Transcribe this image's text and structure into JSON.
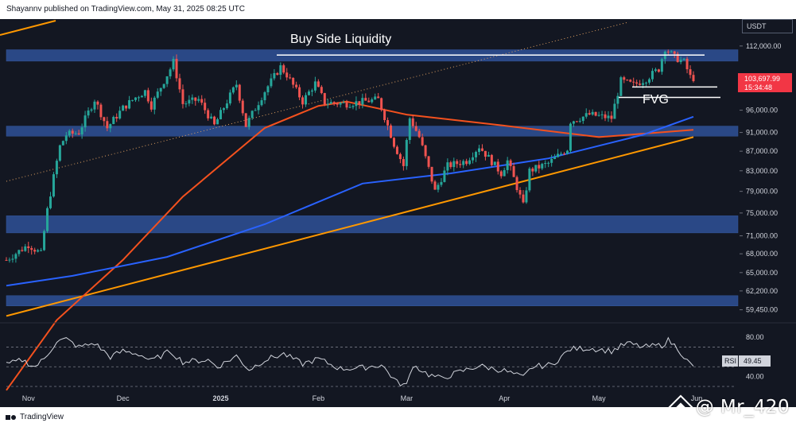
{
  "header": {
    "attribution": "Shayannv published on TradingView.com, May 31, 2025 08:25 UTC"
  },
  "footer": {
    "brand": "TradingView"
  },
  "watermark": {
    "handle": "@ Mr_420"
  },
  "currency": "USDT",
  "price_badge": {
    "price": "103,697.99",
    "countdown": "15:34:48"
  },
  "rsi_badge": {
    "label": "RSI",
    "value": "49.45"
  },
  "annotations": {
    "buy_side": "Buy Side Liquidity",
    "fvg": "FVG"
  },
  "colors": {
    "background": "#131722",
    "up": "#26a69a",
    "down": "#ef5350",
    "zone": "#2d4e91",
    "ma_red": "#f4511e",
    "ma_blue": "#2962ff",
    "trendline": "#ff9800",
    "rsi": "#d1d4dc",
    "price_badge": "#f23645"
  },
  "chart_data": [
    {
      "type": "candlestick",
      "title": "",
      "y_scale": "log",
      "price_ticks": [
        "112,000.00",
        "96,000.00",
        "91,000.00",
        "87,000.00",
        "83,000.00",
        "79,000.00",
        "75,000.00",
        "71,000.00",
        "68,000.00",
        "65,000.00",
        "62,200.00",
        "59,450.00"
      ],
      "price_tick_values": [
        112000,
        96000,
        91000,
        87000,
        83000,
        79000,
        75000,
        71000,
        68000,
        65000,
        62200,
        59450
      ],
      "time_ticks": [
        "Nov",
        "Dec",
        "2025",
        "Feb",
        "Mar",
        "Apr",
        "May",
        "Jun"
      ],
      "time_tick_dates": [
        "2024-11-01",
        "2024-12-01",
        "2025-01-01",
        "2025-02-01",
        "2025-03-01",
        "2025-04-01",
        "2025-05-01",
        "2025-06-01"
      ],
      "date_range": [
        "2024-10-25",
        "2025-05-31"
      ],
      "approx_daily_close": [
        [
          "2024-10-25",
          67000
        ],
        [
          "2024-11-01",
          69500
        ],
        [
          "2024-11-05",
          68000
        ],
        [
          "2024-11-07",
          75500
        ],
        [
          "2024-11-11",
          88000
        ],
        [
          "2024-11-13",
          90500
        ],
        [
          "2024-11-17",
          91000
        ],
        [
          "2024-11-22",
          98500
        ],
        [
          "2024-11-26",
          92000
        ],
        [
          "2024-12-01",
          96500
        ],
        [
          "2024-12-05",
          99000
        ],
        [
          "2024-12-08",
          100500
        ],
        [
          "2024-12-10",
          97000
        ],
        [
          "2024-12-16",
          106000
        ],
        [
          "2024-12-17",
          107800
        ],
        [
          "2024-12-20",
          97500
        ],
        [
          "2024-12-25",
          98500
        ],
        [
          "2024-12-30",
          92500
        ],
        [
          "2025-01-06",
          102200
        ],
        [
          "2025-01-09",
          92500
        ],
        [
          "2025-01-15",
          100500
        ],
        [
          "2025-01-20",
          106500
        ],
        [
          "2025-01-22",
          104500
        ],
        [
          "2025-01-27",
          98000
        ],
        [
          "2025-01-31",
          102400
        ],
        [
          "2025-02-03",
          97800
        ],
        [
          "2025-02-10",
          97500
        ],
        [
          "2025-02-20",
          98500
        ],
        [
          "2025-02-25",
          88500
        ],
        [
          "2025-02-28",
          84000
        ],
        [
          "2025-03-02",
          94200
        ],
        [
          "2025-03-05",
          90000
        ],
        [
          "2025-03-10",
          79000
        ],
        [
          "2025-03-14",
          84000
        ],
        [
          "2025-03-20",
          85000
        ],
        [
          "2025-03-24",
          88000
        ],
        [
          "2025-03-31",
          82500
        ],
        [
          "2025-04-02",
          85000
        ],
        [
          "2025-04-07",
          76300
        ],
        [
          "2025-04-09",
          83000
        ],
        [
          "2025-04-15",
          84500
        ],
        [
          "2025-04-21",
          87500
        ],
        [
          "2025-04-22",
          93500
        ],
        [
          "2025-04-28",
          95000
        ],
        [
          "2025-05-05",
          94200
        ],
        [
          "2025-05-08",
          103000
        ],
        [
          "2025-05-12",
          102000
        ],
        [
          "2025-05-16",
          103500
        ],
        [
          "2025-05-20",
          106000
        ],
        [
          "2025-05-22",
          111500
        ],
        [
          "2025-05-25",
          109000
        ],
        [
          "2025-05-28",
          107800
        ],
        [
          "2025-05-30",
          104000
        ],
        [
          "2025-05-31",
          103698
        ]
      ],
      "zones": [
        [
          108000,
          111000
        ],
        [
          90200,
          92400
        ],
        [
          71500,
          74500
        ],
        [
          60000,
          61500
        ]
      ],
      "buy_side_liquidity_level": 109600,
      "fvg_levels": [
        101500,
        99000
      ],
      "moving_average_200": [
        [
          "2024-10-25",
          49000
        ],
        [
          "2024-11-10",
          58000
        ],
        [
          "2024-12-01",
          67000
        ],
        [
          "2024-12-20",
          78000
        ],
        [
          "2025-01-15",
          92000
        ],
        [
          "2025-02-01",
          97000
        ],
        [
          "2025-02-10",
          98000
        ],
        [
          "2025-03-01",
          95000
        ],
        [
          "2025-04-01",
          92500
        ],
        [
          "2025-05-01",
          90000
        ],
        [
          "2025-05-31",
          91600
        ]
      ],
      "moving_average_blue": [
        [
          "2024-10-25",
          63000
        ],
        [
          "2024-11-15",
          64500
        ],
        [
          "2024-12-15",
          67500
        ],
        [
          "2025-01-15",
          73000
        ],
        [
          "2025-02-15",
          80500
        ],
        [
          "2025-03-15",
          82500
        ],
        [
          "2025-04-15",
          85500
        ],
        [
          "2025-05-15",
          90500
        ],
        [
          "2025-05-31",
          94500
        ]
      ],
      "trendline_points": [
        [
          "2024-10-25",
          59700
        ],
        [
          "2025-05-31",
          90000
        ]
      ]
    },
    {
      "type": "line",
      "title": "",
      "name": "RSI",
      "ylim": [
        30,
        85
      ],
      "ticks": [
        "80.00",
        "40.00"
      ],
      "tick_values": [
        80,
        40
      ],
      "levels": [
        70,
        50,
        30
      ],
      "last_value": 49.45,
      "approx_series": [
        [
          "2024-10-25",
          52
        ],
        [
          "2024-10-30",
          57
        ],
        [
          "2024-11-03",
          50
        ],
        [
          "2024-11-06",
          58
        ],
        [
          "2024-11-10",
          76
        ],
        [
          "2024-11-13",
          78
        ],
        [
          "2024-11-17",
          70
        ],
        [
          "2024-11-22",
          74
        ],
        [
          "2024-11-27",
          60
        ],
        [
          "2024-12-01",
          66
        ],
        [
          "2024-12-06",
          63
        ],
        [
          "2024-12-10",
          56
        ],
        [
          "2024-12-16",
          66
        ],
        [
          "2024-12-20",
          55
        ],
        [
          "2024-12-28",
          57
        ],
        [
          "2024-12-31",
          50
        ],
        [
          "2025-01-06",
          61
        ],
        [
          "2025-01-10",
          47
        ],
        [
          "2025-01-15",
          57
        ],
        [
          "2025-01-21",
          63
        ],
        [
          "2025-01-27",
          53
        ],
        [
          "2025-02-01",
          58
        ],
        [
          "2025-02-08",
          48
        ],
        [
          "2025-02-15",
          49
        ],
        [
          "2025-02-21",
          52
        ],
        [
          "2025-02-26",
          34
        ],
        [
          "2025-03-01",
          31
        ],
        [
          "2025-03-03",
          52
        ],
        [
          "2025-03-08",
          42
        ],
        [
          "2025-03-12",
          38
        ],
        [
          "2025-03-18",
          45
        ],
        [
          "2025-03-24",
          51
        ],
        [
          "2025-04-01",
          46
        ],
        [
          "2025-04-07",
          39
        ],
        [
          "2025-04-10",
          50
        ],
        [
          "2025-04-16",
          52
        ],
        [
          "2025-04-22",
          68
        ],
        [
          "2025-04-28",
          69
        ],
        [
          "2025-05-05",
          66
        ],
        [
          "2025-05-10",
          74
        ],
        [
          "2025-05-15",
          70
        ],
        [
          "2025-05-21",
          72
        ],
        [
          "2025-05-23",
          77
        ],
        [
          "2025-05-26",
          69
        ],
        [
          "2025-05-29",
          56
        ],
        [
          "2025-05-31",
          49.45
        ]
      ]
    }
  ]
}
